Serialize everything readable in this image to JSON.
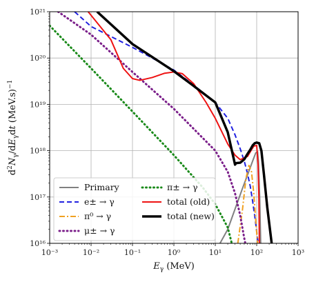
{
  "chart_data": {
    "type": "line",
    "xlabel": "E_γ (MeV)",
    "ylabel": "d²N_γ/dE_γdt (MeV.s)⁻¹",
    "xscale": "log",
    "yscale": "log",
    "xlim": [
      0.001,
      1000
    ],
    "ylim": [
      1e+16,
      1e+21
    ],
    "grid": true,
    "legend_position": "lower-left",
    "x_ticks": [
      "10⁻³",
      "10⁻²",
      "10⁻¹",
      "10⁰",
      "10¹",
      "10²",
      "10³"
    ],
    "y_ticks": [
      "10¹⁶",
      "10¹⁷",
      "10¹⁸",
      "10¹⁹",
      "10²⁰",
      "10²¹"
    ],
    "series": [
      {
        "name": "Primary",
        "color": "#808080",
        "style": "solid",
        "width": 2,
        "points": [
          [
            13,
            1e+16
          ],
          [
            20,
            2e+16
          ],
          [
            30,
            5.5e+16
          ],
          [
            45,
            1.5e+17
          ],
          [
            60,
            3e+17
          ],
          [
            80,
            6e+17
          ],
          [
            95,
            9e+17
          ],
          [
            105,
            9.5e+17
          ],
          [
            110,
            6e+17
          ],
          [
            118,
            1e+17
          ],
          [
            125,
            1e+16
          ]
        ]
      },
      {
        "name": "e± → γ",
        "color": "#1f1fe0",
        "style": "dashed",
        "width": 2,
        "points": [
          [
            0.004,
            1e+21
          ],
          [
            0.01,
            4.8e+20
          ],
          [
            0.1,
            1.7e+20
          ],
          [
            0.3,
            1e+20
          ],
          [
            1,
            5.5e+19
          ],
          [
            3,
            2.6e+19
          ],
          [
            10,
            1.1e+19
          ],
          [
            20,
            5e+18
          ],
          [
            30,
            2.2e+18
          ],
          [
            40,
            1.1e+18
          ],
          [
            50,
            6e+17
          ],
          [
            60,
            3.2e+17
          ],
          [
            70,
            1.7e+17
          ],
          [
            80,
            8e+16
          ],
          [
            90,
            3.8e+16
          ],
          [
            100,
            1.8e+16
          ],
          [
            108,
            1e+16
          ]
        ]
      },
      {
        "name": "π⁰ → γ",
        "color": "#f0a020",
        "style": "dashdot",
        "width": 2,
        "points": [
          [
            35,
            1e+16
          ],
          [
            45,
            5e+16
          ],
          [
            55,
            2.5e+17
          ],
          [
            65,
            4.8e+17
          ],
          [
            75,
            3.5e+17
          ],
          [
            85,
            1.2e+17
          ],
          [
            95,
            3e+16
          ],
          [
            105,
            1e+16
          ]
        ]
      },
      {
        "name": "μ± → γ",
        "color": "#7b1f8a",
        "style": "dotted",
        "width": 3,
        "points": [
          [
            0.0016,
            1e+21
          ],
          [
            0.01,
            3.2e+20
          ],
          [
            0.1,
            5e+19
          ],
          [
            1,
            8e+18
          ],
          [
            10,
            1e+18
          ],
          [
            20,
            3.5e+17
          ],
          [
            30,
            1.2e+17
          ],
          [
            40,
            4e+16
          ],
          [
            50,
            1.3e+16
          ],
          [
            53,
            1e+16
          ]
        ]
      },
      {
        "name": "π± → γ",
        "color": "#1a8a1a",
        "style": "dotted",
        "width": 3,
        "points": [
          [
            0.001,
            5e+20
          ],
          [
            0.01,
            6e+19
          ],
          [
            0.1,
            7e+18
          ],
          [
            1,
            8e+17
          ],
          [
            5,
            1.6e+17
          ],
          [
            10,
            7e+16
          ],
          [
            20,
            2.2e+16
          ],
          [
            25,
            1e+16
          ]
        ]
      },
      {
        "name": "total (old)",
        "color": "#ee1111",
        "style": "solid",
        "width": 2,
        "points": [
          [
            0.0085,
            1e+21
          ],
          [
            0.03,
            2.5e+20
          ],
          [
            0.06,
            6e+19
          ],
          [
            0.1,
            3.6e+19
          ],
          [
            0.15,
            3.3e+19
          ],
          [
            0.3,
            3.8e+19
          ],
          [
            0.6,
            4.7e+19
          ],
          [
            1,
            5e+19
          ],
          [
            1.6,
            4.6e+19
          ],
          [
            3,
            2.8e+19
          ],
          [
            6,
            1.1e+19
          ],
          [
            10,
            5e+18
          ],
          [
            20,
            1.4e+18
          ],
          [
            30,
            8e+17
          ],
          [
            40,
            6.4e+17
          ],
          [
            60,
            7.5e+17
          ],
          [
            75,
            1.05e+18
          ],
          [
            85,
            1.25e+18
          ],
          [
            100,
            1.3e+18
          ],
          [
            108,
            5e+17
          ],
          [
            113,
            1e+17
          ],
          [
            116,
            1e+16
          ]
        ]
      },
      {
        "name": "total (new)",
        "color": "#000000",
        "style": "solid",
        "width": 3.5,
        "points": [
          [
            0.014,
            1e+21
          ],
          [
            0.1,
            2e+20
          ],
          [
            1,
            5.2e+19
          ],
          [
            3,
            2.5e+19
          ],
          [
            10,
            1.1e+19
          ],
          [
            20,
            2.5e+18
          ],
          [
            30,
            5e+17
          ],
          [
            32,
            5.4e+17
          ],
          [
            40,
            5.5e+17
          ],
          [
            50,
            6.5e+17
          ],
          [
            60,
            8.5e+17
          ],
          [
            70,
            1.05e+18
          ],
          [
            80,
            1.3e+18
          ],
          [
            90,
            1.45e+18
          ],
          [
            100,
            1.5e+18
          ],
          [
            115,
            1.45e+18
          ],
          [
            130,
            1e+18
          ],
          [
            150,
            3e+17
          ],
          [
            180,
            6e+16
          ],
          [
            230,
            1e+16
          ]
        ]
      }
    ],
    "legend": {
      "items": [
        {
          "label": "Primary",
          "color": "#808080",
          "style": "solid"
        },
        {
          "label": "π± → γ",
          "color": "#1a8a1a",
          "style": "dotted"
        },
        {
          "label": "e± → γ",
          "color": "#1f1fe0",
          "style": "dashed"
        },
        {
          "label": "total (old)",
          "color": "#ee1111",
          "style": "solid"
        },
        {
          "label": "π⁰ → γ",
          "color": "#f0a020",
          "style": "dashdot"
        },
        {
          "label": "total (new)",
          "color": "#000000",
          "style": "solid"
        },
        {
          "label": "μ± → γ",
          "color": "#7b1f8a",
          "style": "dotted"
        }
      ]
    }
  }
}
